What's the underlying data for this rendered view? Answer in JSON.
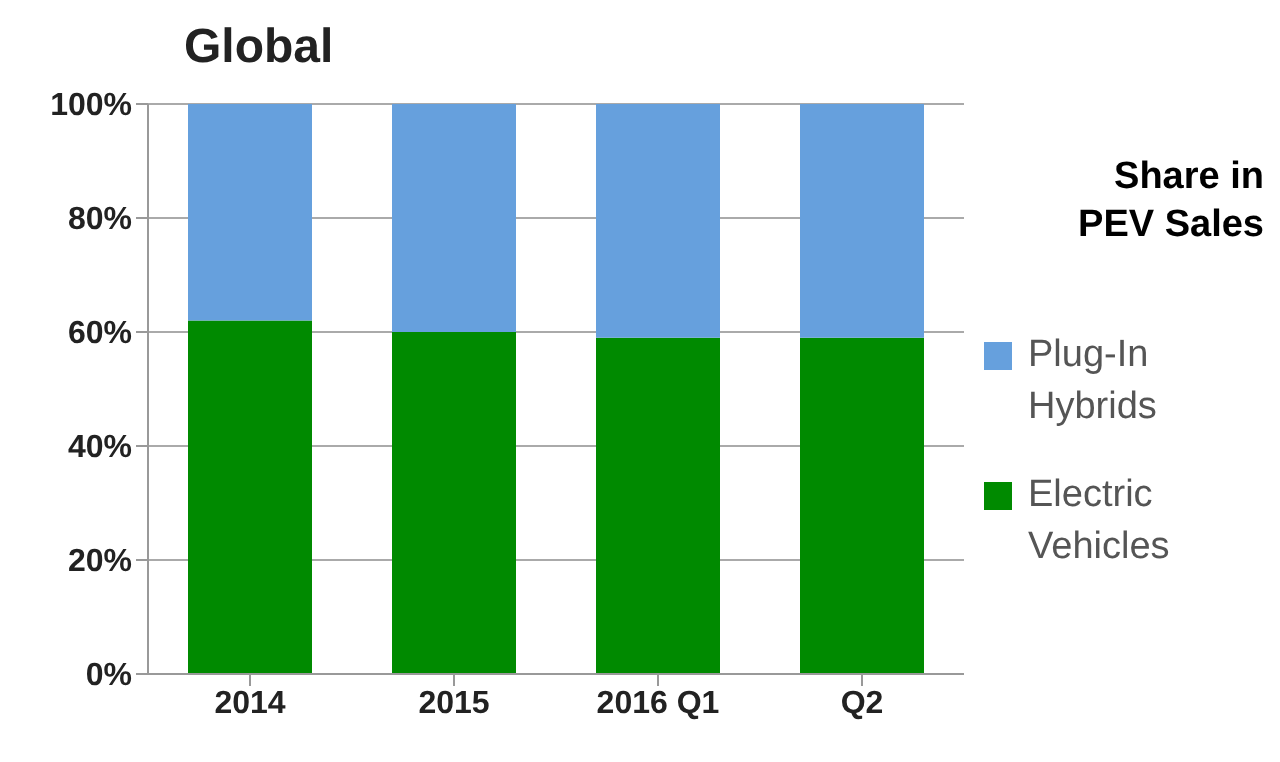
{
  "chart_data": {
    "type": "bar",
    "title": "Global",
    "legend_title": "Share in PEV Sales",
    "categories": [
      "2014",
      "2015",
      "2016 Q1",
      "Q2"
    ],
    "stacked": true,
    "series": [
      {
        "name": "Electric Vehicles",
        "color": "#008a00",
        "values": [
          62,
          60,
          59,
          59
        ]
      },
      {
        "name": "Plug-In Hybrids",
        "color": "#66a0dd",
        "values": [
          38,
          40,
          41,
          41
        ]
      }
    ],
    "ylim": [
      0,
      100
    ],
    "yticks": [
      {
        "value": 0,
        "label": "0%"
      },
      {
        "value": 20,
        "label": "20%"
      },
      {
        "value": 40,
        "label": "40%"
      },
      {
        "value": 60,
        "label": "60%"
      },
      {
        "value": 80,
        "label": "80%"
      },
      {
        "value": 100,
        "label": "100%"
      }
    ],
    "grid": "y",
    "legend": "right"
  }
}
